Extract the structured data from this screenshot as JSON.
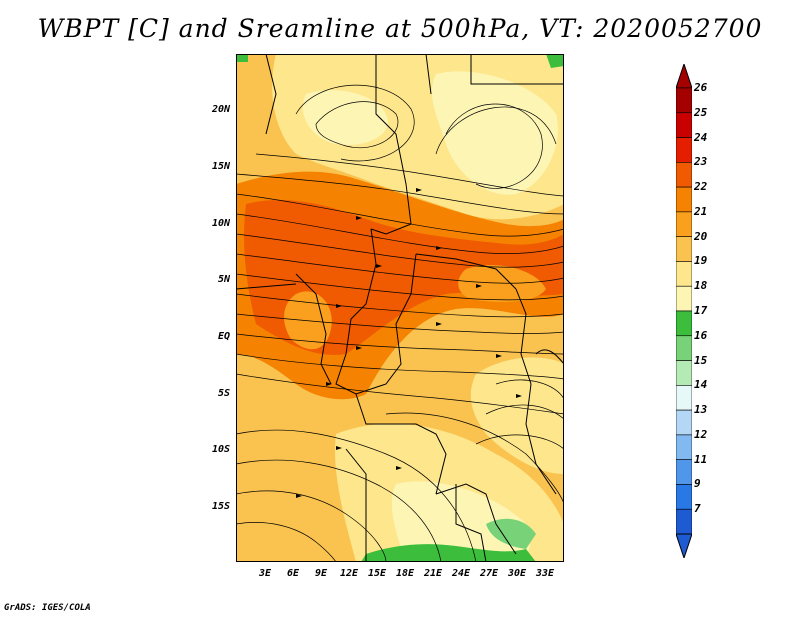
{
  "title": "WBPT [C] and Sreamline at 500hPa, VT: 2020052700",
  "credit": "GrADS: IGES/COLA",
  "map": {
    "variable": "WBPT [C]",
    "level": "500hPa",
    "valid_time": "2020052700",
    "lat_labels": [
      "20N",
      "15N",
      "10N",
      "5N",
      "EQ",
      "5S",
      "10S",
      "15S"
    ],
    "lon_labels": [
      "3E",
      "6E",
      "9E",
      "12E",
      "15E",
      "18E",
      "21E",
      "24E",
      "27E",
      "30E",
      "33E"
    ]
  },
  "colorbar": {
    "labels": [
      "26",
      "25",
      "24",
      "23",
      "22",
      "21",
      "20",
      "19",
      "18",
      "17",
      "16",
      "15",
      "14",
      "13",
      "12",
      "11",
      "9",
      "7"
    ],
    "colors": [
      "#a50000",
      "#c80000",
      "#e61e00",
      "#f05a00",
      "#f58200",
      "#faa01e",
      "#fac350",
      "#fde68c",
      "#fdf5b4",
      "#3cbe3c",
      "#78d278",
      "#b4eab4",
      "#e6f8f8",
      "#b4d7f5",
      "#82b9f0",
      "#5096eb",
      "#2878e6",
      "#1e5ad2"
    ]
  }
}
